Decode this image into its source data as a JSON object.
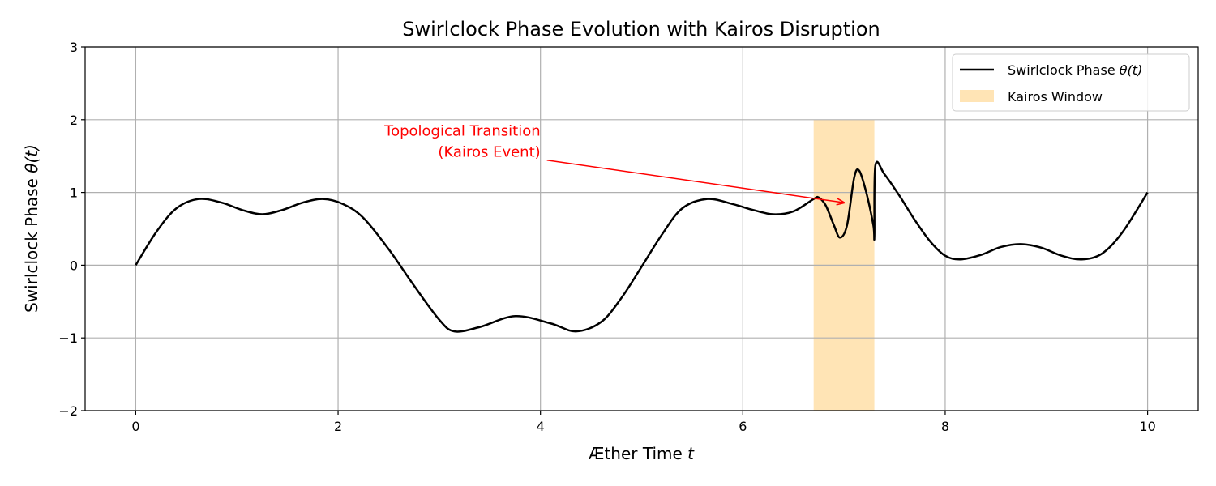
{
  "chart_data": {
    "type": "line",
    "title": "Swirlclock Phase Evolution with Kairos Disruption",
    "xlabel": "Æther Time",
    "xlabel_var": "t",
    "ylabel": "Swirlclock Phase",
    "ylabel_var": "θ(t)",
    "xlim": [
      -0.5,
      10.5
    ],
    "ylim": [
      -2,
      3
    ],
    "xticks": [
      0,
      2,
      4,
      6,
      8,
      10
    ],
    "xtick_labels": [
      "0",
      "2",
      "4",
      "6",
      "8",
      "10"
    ],
    "yticks": [
      -2,
      -1,
      0,
      1,
      2,
      3
    ],
    "ytick_labels": [
      "−2",
      "−1",
      "0",
      "1",
      "2",
      "3"
    ],
    "grid": true,
    "legend_position": "top-right",
    "series": [
      {
        "name": "Swirlclock Phase",
        "name_var": "θ(t)",
        "color": "#000000",
        "x": [
          0,
          0.2,
          0.4,
          0.62,
          0.85,
          1.05,
          1.25,
          1.45,
          1.65,
          1.85,
          2.05,
          2.25,
          2.5,
          2.75,
          3.0,
          3.15,
          3.4,
          3.75,
          4.1,
          4.35,
          4.6,
          4.8,
          5.0,
          5.2,
          5.4,
          5.65,
          5.9,
          6.1,
          6.3,
          6.5,
          6.7,
          6.75,
          6.82,
          6.9,
          6.96,
          7.03,
          7.1,
          7.15,
          7.22,
          7.29,
          7.3,
          7.31,
          7.4,
          7.55,
          7.7,
          7.85,
          8.0,
          8.15,
          8.35,
          8.55,
          8.75,
          8.95,
          9.15,
          9.35,
          9.55,
          9.75,
          10.0
        ],
        "y": [
          0.0,
          0.45,
          0.78,
          0.91,
          0.86,
          0.76,
          0.7,
          0.76,
          0.86,
          0.91,
          0.84,
          0.65,
          0.22,
          -0.28,
          -0.75,
          -0.91,
          -0.85,
          -0.7,
          -0.8,
          -0.91,
          -0.78,
          -0.45,
          -0.02,
          0.42,
          0.78,
          0.91,
          0.84,
          0.76,
          0.7,
          0.74,
          0.91,
          0.93,
          0.82,
          0.55,
          0.38,
          0.55,
          1.2,
          1.3,
          1.0,
          0.55,
          0.4,
          1.37,
          1.25,
          0.95,
          0.62,
          0.33,
          0.13,
          0.08,
          0.14,
          0.25,
          0.29,
          0.24,
          0.13,
          0.08,
          0.16,
          0.45,
          1.0
        ]
      }
    ],
    "shaded_regions": [
      {
        "name": "Kairos Window",
        "x_start": 6.7,
        "x_end": 7.3,
        "y_start": -2,
        "y_end": 2,
        "color": "#ffe4b5"
      }
    ],
    "annotations": [
      {
        "lines": [
          "Topological Transition",
          "(Kairos Event)"
        ],
        "text_x": 4.0,
        "text_y": 1.5,
        "arrow_to_x": 7.0,
        "arrow_to_y": 0.86,
        "color": "#ff0000"
      }
    ]
  }
}
